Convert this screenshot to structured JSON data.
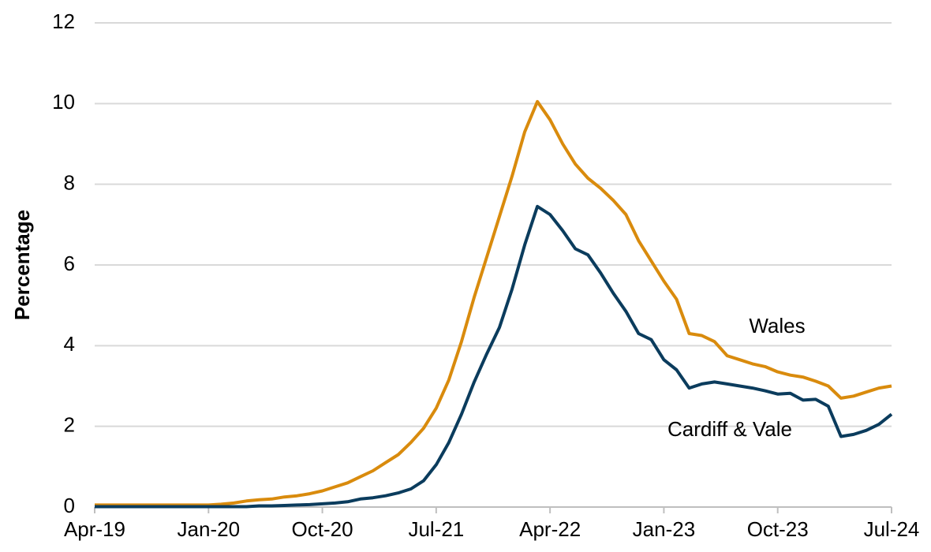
{
  "chart_data": {
    "type": "line",
    "ylabel": "Percentage",
    "categories": [
      "Apr-19",
      null,
      null,
      null,
      null,
      null,
      null,
      null,
      null,
      "Jan-20",
      null,
      null,
      null,
      null,
      null,
      null,
      null,
      null,
      "Oct-20",
      null,
      null,
      null,
      null,
      null,
      null,
      null,
      null,
      "Jul-21",
      null,
      null,
      null,
      null,
      null,
      null,
      null,
      null,
      "Apr-22",
      null,
      null,
      null,
      null,
      null,
      null,
      null,
      null,
      "Jan-23",
      null,
      null,
      null,
      null,
      null,
      null,
      null,
      null,
      "Oct-23",
      null,
      null,
      null,
      null,
      null,
      null,
      null,
      null,
      "Jul-24"
    ],
    "series": [
      {
        "name": "Wales",
        "color": "#d98b0d",
        "values": [
          0.05,
          0.05,
          0.05,
          0.05,
          0.05,
          0.05,
          0.05,
          0.05,
          0.05,
          0.05,
          0.07,
          0.1,
          0.15,
          0.18,
          0.2,
          0.25,
          0.28,
          0.33,
          0.4,
          0.5,
          0.6,
          0.75,
          0.9,
          1.1,
          1.3,
          1.6,
          1.95,
          2.45,
          3.15,
          4.1,
          5.2,
          6.2,
          7.2,
          8.2,
          9.3,
          10.05,
          9.6,
          9.0,
          8.5,
          8.15,
          7.9,
          7.6,
          7.25,
          6.6,
          6.1,
          5.6,
          5.15,
          4.3,
          4.25,
          4.1,
          3.75,
          3.65,
          3.55,
          3.48,
          3.35,
          3.27,
          3.22,
          3.12,
          3.0,
          2.7,
          2.75,
          2.85,
          2.95,
          3.0
        ]
      },
      {
        "name": "Cardiff & Vale",
        "color": "#0b3c5d",
        "values": [
          0.01,
          0.01,
          0.01,
          0.01,
          0.01,
          0.01,
          0.01,
          0.01,
          0.01,
          0.01,
          0.01,
          0.01,
          0.01,
          0.03,
          0.03,
          0.04,
          0.05,
          0.06,
          0.08,
          0.1,
          0.13,
          0.2,
          0.23,
          0.28,
          0.35,
          0.45,
          0.65,
          1.05,
          1.6,
          2.3,
          3.1,
          3.8,
          4.45,
          5.4,
          6.5,
          7.45,
          7.25,
          6.85,
          6.4,
          6.25,
          5.8,
          5.3,
          4.85,
          4.3,
          4.15,
          3.65,
          3.4,
          2.95,
          3.05,
          3.1,
          3.05,
          3.0,
          2.95,
          2.88,
          2.8,
          2.82,
          2.65,
          2.67,
          2.5,
          1.75,
          1.8,
          1.9,
          2.05,
          2.3
        ]
      }
    ],
    "ylim": [
      0,
      12
    ],
    "yticks": [
      0,
      2,
      4,
      6,
      8,
      10,
      12
    ],
    "grid": true
  }
}
